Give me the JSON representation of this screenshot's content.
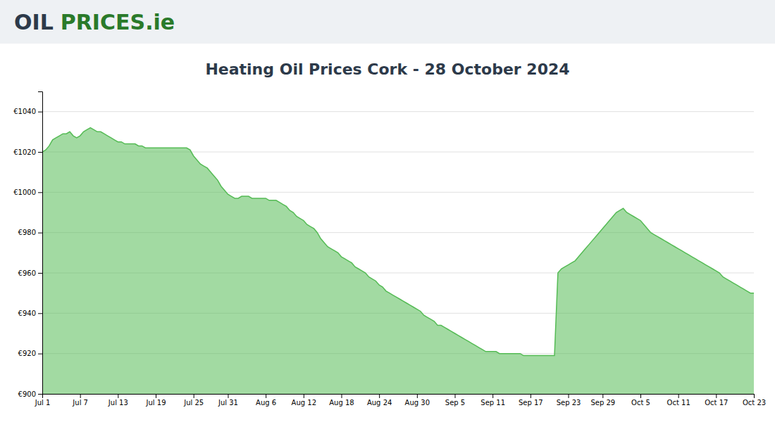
{
  "chart_data": {
    "type": "area",
    "title": "Heating Oil Prices Cork - 28 October 2024",
    "annotations": [
      "OIL",
      "PRICES",
      ".ie"
    ],
    "color": "#55bb55",
    "grid": true,
    "ylim": [
      900,
      1050
    ],
    "yticks": [
      {
        "value": 900,
        "label": "€900"
      },
      {
        "value": 920,
        "label": "€920"
      },
      {
        "value": 940,
        "label": "€940"
      },
      {
        "value": 960,
        "label": "€960"
      },
      {
        "value": 980,
        "label": "€980"
      },
      {
        "value": 1000,
        "label": "€1000"
      },
      {
        "value": 1020,
        "label": "€1020"
      },
      {
        "value": 1040,
        "label": "€1040"
      }
    ],
    "categories": [
      "Jul 1",
      null,
      null,
      null,
      null,
      null,
      null,
      null,
      null,
      null,
      null,
      "Jul 7",
      null,
      null,
      null,
      null,
      null,
      null,
      null,
      null,
      null,
      null,
      "Jul 13",
      null,
      null,
      null,
      null,
      null,
      null,
      null,
      null,
      null,
      null,
      "Jul 19",
      null,
      null,
      null,
      null,
      null,
      null,
      null,
      null,
      null,
      null,
      "Jul 25",
      null,
      null,
      null,
      null,
      null,
      null,
      null,
      null,
      null,
      "Jul 31",
      null,
      null,
      null,
      null,
      null,
      null,
      null,
      null,
      null,
      null,
      "Aug 6",
      null,
      null,
      null,
      null,
      null,
      null,
      null,
      null,
      null,
      null,
      "Aug 12",
      null,
      null,
      null,
      null,
      null,
      null,
      null,
      null,
      null,
      null,
      "Aug 18",
      null,
      null,
      null,
      null,
      null,
      null,
      null,
      null,
      null,
      null,
      "Aug 24",
      null,
      null,
      null,
      null,
      null,
      null,
      null,
      null,
      null,
      null,
      "Aug 30",
      null,
      null,
      null,
      null,
      null,
      null,
      null,
      null,
      null,
      null,
      "Sep 5",
      null,
      null,
      null,
      null,
      null,
      null,
      null,
      null,
      null,
      null,
      "Sep 11",
      null,
      null,
      null,
      null,
      null,
      null,
      null,
      null,
      null,
      null,
      "Sep 17",
      null,
      null,
      null,
      null,
      null,
      null,
      null,
      null,
      null,
      null,
      "Sep 23",
      null,
      null,
      null,
      null,
      null,
      null,
      null,
      null,
      null,
      "Sep 29",
      null,
      null,
      null,
      null,
      null,
      null,
      null,
      null,
      null,
      null,
      "Oct 5",
      null,
      null,
      null,
      null,
      null,
      null,
      null,
      null,
      null,
      null,
      "Oct 11",
      null,
      null,
      null,
      null,
      null,
      null,
      null,
      null,
      null,
      null,
      "Oct 17",
      null,
      null,
      null,
      null,
      null,
      null,
      null,
      null,
      null,
      null,
      "Oct 23"
    ],
    "values": [
      1020,
      1021,
      1023,
      1026,
      1027,
      1028,
      1029,
      1029,
      1030,
      1028,
      1027,
      1028,
      1030,
      1031,
      1032,
      1031,
      1030,
      1030,
      1029,
      1028,
      1027,
      1026,
      1025,
      1025,
      1024,
      1024,
      1024,
      1024,
      1023,
      1023,
      1022,
      1022,
      1022,
      1022,
      1022,
      1022,
      1022,
      1022,
      1022,
      1022,
      1022,
      1022,
      1022,
      1021,
      1018,
      1016,
      1014,
      1013,
      1012,
      1010,
      1008,
      1006,
      1003,
      1001,
      999,
      998,
      997,
      997,
      998,
      998,
      998,
      997,
      997,
      997,
      997,
      997,
      996,
      996,
      996,
      995,
      994,
      993,
      991,
      990,
      988,
      987,
      986,
      984,
      983,
      982,
      980,
      977,
      975,
      973,
      972,
      971,
      970,
      968,
      967,
      966,
      965,
      963,
      962,
      961,
      960,
      958,
      957,
      956,
      954,
      953,
      951,
      950,
      949,
      948,
      947,
      946,
      945,
      944,
      943,
      942,
      941,
      939,
      938,
      937,
      936,
      934,
      934,
      933,
      932,
      931,
      930,
      929,
      928,
      927,
      926,
      925,
      924,
      923,
      922,
      921,
      921,
      921,
      921,
      920,
      920,
      920,
      920,
      920,
      920,
      920,
      919,
      919,
      919,
      919,
      919,
      919,
      919,
      919,
      919,
      919,
      960,
      962,
      963,
      964,
      965,
      966,
      968,
      970,
      972,
      974,
      976,
      978,
      980,
      982,
      984,
      986,
      988,
      990,
      991,
      992,
      990,
      989,
      988,
      987,
      986,
      984,
      982,
      980,
      979,
      978,
      977,
      976,
      975,
      974,
      973,
      972,
      971,
      970,
      969,
      968,
      967,
      966,
      965,
      964,
      963,
      962,
      961,
      960,
      958,
      957,
      956,
      955,
      954,
      953,
      952,
      951,
      950,
      950
    ]
  }
}
